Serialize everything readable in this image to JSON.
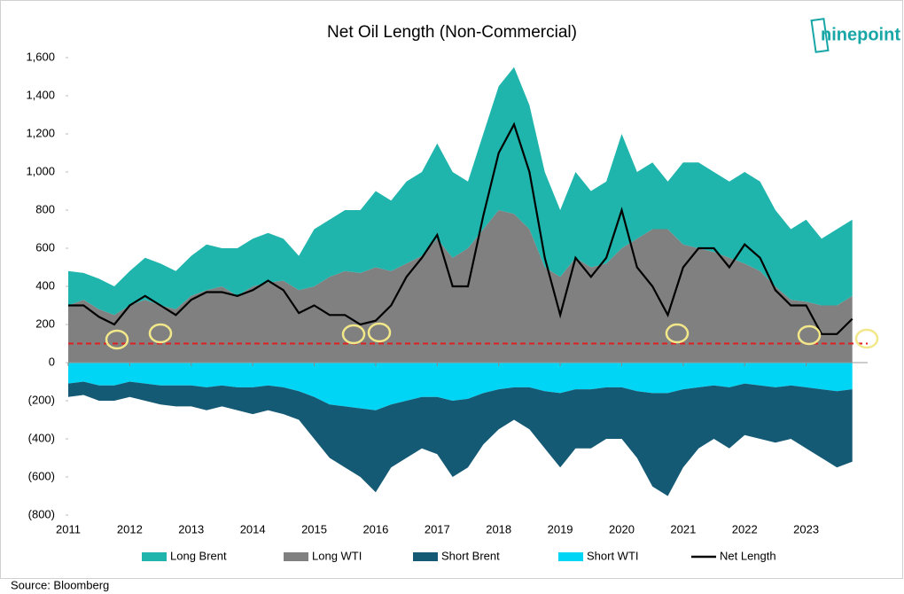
{
  "chart_data": {
    "type": "area",
    "title": "Net Oil Length (Non-Commercial)",
    "logo": "ninepoint",
    "source": "Source: Bloomberg",
    "x": [
      2011.0,
      2011.25,
      2011.5,
      2011.75,
      2012.0,
      2012.25,
      2012.5,
      2012.75,
      2013.0,
      2013.25,
      2013.5,
      2013.75,
      2014.0,
      2014.25,
      2014.5,
      2014.75,
      2015.0,
      2015.25,
      2015.5,
      2015.75,
      2016.0,
      2016.25,
      2016.5,
      2016.75,
      2017.0,
      2017.25,
      2017.5,
      2017.75,
      2018.0,
      2018.25,
      2018.5,
      2018.75,
      2019.0,
      2019.25,
      2019.5,
      2019.75,
      2020.0,
      2020.25,
      2020.5,
      2020.75,
      2021.0,
      2021.25,
      2021.5,
      2021.75,
      2022.0,
      2022.25,
      2022.5,
      2022.75,
      2023.0,
      2023.25,
      2023.5,
      2023.75
    ],
    "xlim": [
      2011,
      2024
    ],
    "xticks": [
      2011,
      2012,
      2013,
      2014,
      2015,
      2016,
      2017,
      2018,
      2019,
      2020,
      2021,
      2022,
      2023
    ],
    "ylim": [
      -800,
      1600
    ],
    "yticks": [
      {
        "value": 1600,
        "label": "1,600"
      },
      {
        "value": 1400,
        "label": "1,400"
      },
      {
        "value": 1200,
        "label": "1,200"
      },
      {
        "value": 1000,
        "label": "1,000"
      },
      800,
      600,
      400,
      200,
      0,
      {
        "value": -200,
        "label": "(200)"
      },
      {
        "value": -400,
        "label": "(400)"
      },
      {
        "value": -600,
        "label": "(600)"
      },
      {
        "value": -800,
        "label": "(800)"
      }
    ],
    "threshold": 100,
    "threshold_color": "#e02020",
    "series": [
      {
        "name": "Long Brent",
        "type": "area",
        "color": "#1fb5ad",
        "values": [
          180,
          140,
          160,
          150,
          180,
          220,
          220,
          200,
          210,
          240,
          200,
          250,
          250,
          260,
          220,
          180,
          300,
          300,
          320,
          330,
          400,
          370,
          430,
          440,
          500,
          450,
          350,
          500,
          650,
          770,
          650,
          500,
          350,
          450,
          400,
          430,
          600,
          350,
          350,
          250,
          430,
          450,
          420,
          400,
          480,
          470,
          400,
          370,
          430,
          350,
          400,
          400
        ]
      },
      {
        "name": "Long WTI",
        "type": "area",
        "color": "#808080",
        "values": [
          300,
          330,
          280,
          250,
          300,
          330,
          300,
          280,
          350,
          380,
          400,
          350,
          400,
          420,
          430,
          380,
          400,
          450,
          480,
          470,
          500,
          480,
          520,
          560,
          650,
          550,
          600,
          700,
          800,
          780,
          700,
          500,
          450,
          550,
          500,
          520,
          600,
          650,
          700,
          700,
          620,
          600,
          580,
          550,
          520,
          480,
          400,
          330,
          320,
          300,
          300,
          350
        ]
      },
      {
        "name": "Short Brent",
        "type": "area",
        "color": "#155a75",
        "values": [
          -70,
          -70,
          -80,
          -80,
          -80,
          -90,
          -100,
          -110,
          -110,
          -120,
          -110,
          -120,
          -140,
          -130,
          -140,
          -150,
          -220,
          -280,
          -320,
          -360,
          -430,
          -330,
          -300,
          -270,
          -300,
          -400,
          -360,
          -270,
          -210,
          -170,
          -220,
          -300,
          -390,
          -310,
          -310,
          -270,
          -270,
          -350,
          -490,
          -540,
          -410,
          -320,
          -280,
          -320,
          -270,
          -280,
          -290,
          -280,
          -320,
          -360,
          -400,
          -380
        ]
      },
      {
        "name": "Short WTI",
        "type": "area",
        "color": "#00d5f5",
        "values": [
          -110,
          -100,
          -120,
          -120,
          -100,
          -110,
          -120,
          -120,
          -120,
          -130,
          -120,
          -130,
          -130,
          -120,
          -130,
          -150,
          -180,
          -220,
          -230,
          -240,
          -250,
          -220,
          -200,
          -180,
          -180,
          -200,
          -190,
          -160,
          -140,
          -130,
          -130,
          -150,
          -160,
          -140,
          -140,
          -130,
          -130,
          -150,
          -160,
          -160,
          -140,
          -130,
          -120,
          -130,
          -110,
          -120,
          -130,
          -120,
          -130,
          -140,
          -150,
          -140
        ]
      },
      {
        "name": "Net Length",
        "type": "line",
        "color": "#000000",
        "values": [
          300,
          300,
          240,
          200,
          300,
          350,
          300,
          250,
          330,
          370,
          370,
          350,
          380,
          430,
          380,
          260,
          300,
          250,
          250,
          200,
          220,
          300,
          450,
          550,
          670,
          400,
          400,
          770,
          1100,
          1250,
          1000,
          550,
          250,
          550,
          450,
          550,
          800,
          500,
          400,
          250,
          500,
          600,
          600,
          500,
          620,
          550,
          380,
          300,
          300,
          150,
          150,
          230
        ]
      }
    ]
  }
}
